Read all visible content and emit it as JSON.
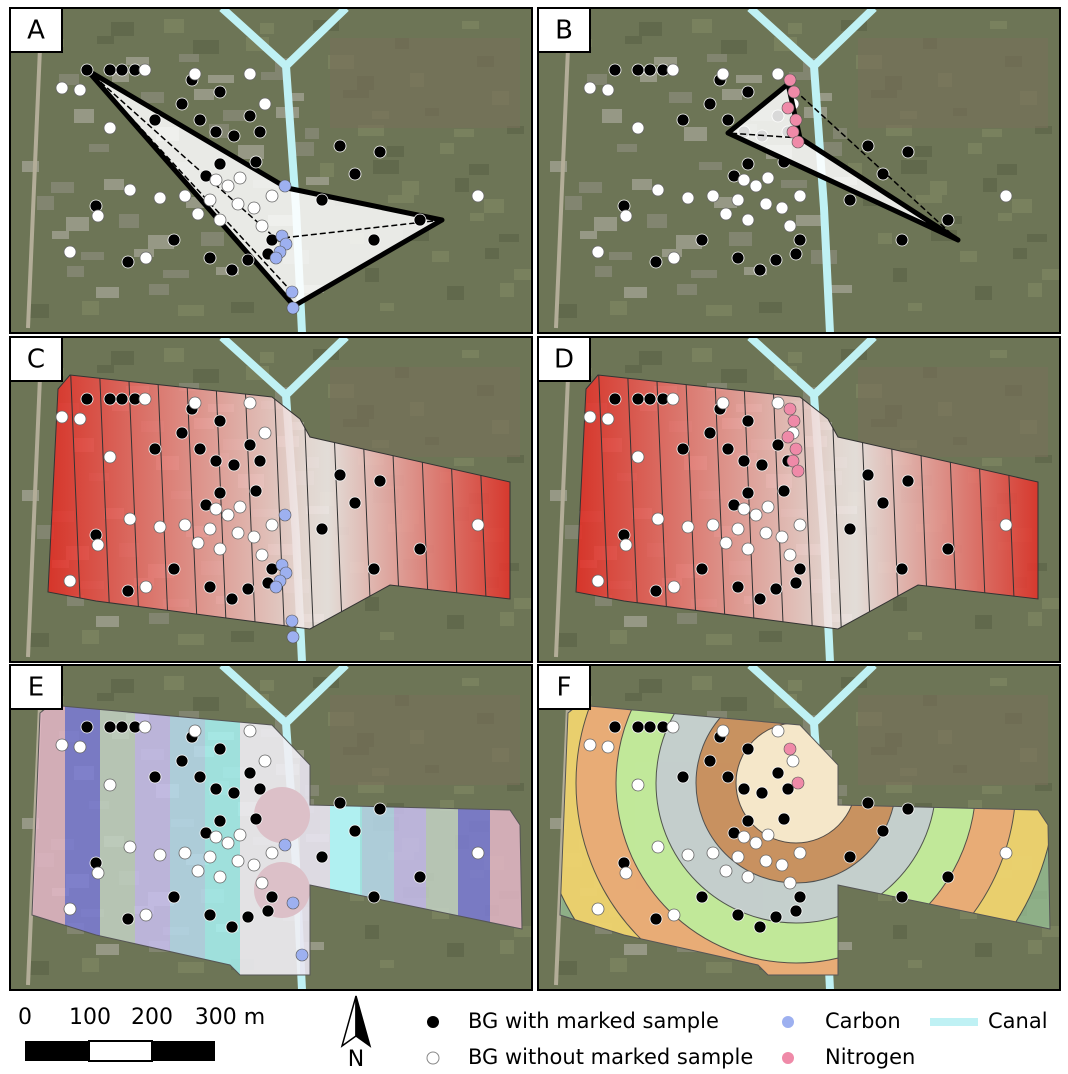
{
  "panels": [
    {
      "label": "A"
    },
    {
      "label": "B"
    },
    {
      "label": "C"
    },
    {
      "label": "D"
    },
    {
      "label": "E"
    },
    {
      "label": "F"
    }
  ],
  "scale_bar": {
    "labels": [
      "0",
      "100",
      "200",
      "300 m"
    ]
  },
  "north_arrow": {
    "label": "N"
  },
  "legend": {
    "items": [
      {
        "label": "BG with marked sample"
      },
      {
        "label": "BG without marked sample"
      },
      {
        "label": "Carbon"
      },
      {
        "label": "Nitrogen"
      },
      {
        "label": "Canal"
      }
    ]
  }
}
